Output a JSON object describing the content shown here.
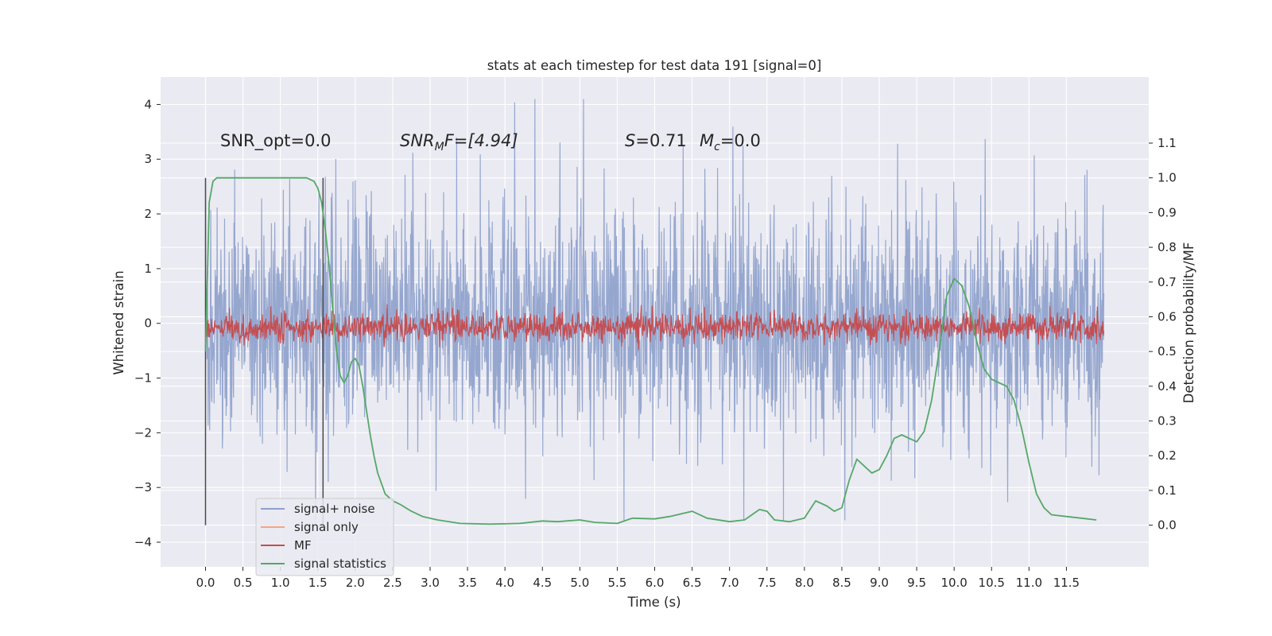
{
  "chart_data": {
    "type": "line",
    "title": "stats at each timestep for test data 191 [signal=0]",
    "xlabel": "Time (s)",
    "ylabel": "Whitened strain",
    "y2label": "Detection probability/MF",
    "xlim": [
      -0.6,
      12.6
    ],
    "ylim": [
      -4.45,
      4.5
    ],
    "y2lim": [
      -0.12,
      1.29
    ],
    "x_ticks": [
      "0.0",
      "0.5",
      "1.0",
      "1.5",
      "2.0",
      "2.5",
      "3.0",
      "3.5",
      "4.0",
      "4.5",
      "5.0",
      "5.5",
      "6.0",
      "6.5",
      "7.0",
      "7.5",
      "8.0",
      "8.5",
      "9.0",
      "9.5",
      "10.0",
      "10.5",
      "11.0",
      "11.5"
    ],
    "x_tick_values": [
      0,
      0.5,
      1,
      1.5,
      2,
      2.5,
      3,
      3.5,
      4,
      4.5,
      5,
      5.5,
      6,
      6.5,
      7,
      7.5,
      8,
      8.5,
      9,
      9.5,
      10,
      10.5,
      11,
      11.5
    ],
    "y_ticks": [
      "−4",
      "−3",
      "−2",
      "−1",
      "0",
      "1",
      "2",
      "3",
      "4"
    ],
    "y_tick_values": [
      -4,
      -3,
      -2,
      -1,
      0,
      1,
      2,
      3,
      4
    ],
    "y2_ticks": [
      "0.0",
      "0.1",
      "0.2",
      "0.3",
      "0.4",
      "0.5",
      "0.6",
      "0.7",
      "0.8",
      "0.9",
      "1.0",
      "1.1"
    ],
    "y2_tick_values": [
      0,
      0.1,
      0.2,
      0.3,
      0.4,
      0.5,
      0.6,
      0.7,
      0.8,
      0.9,
      1.0,
      1.1
    ],
    "grid": true,
    "legend_position": "bottom-left",
    "annotations": {
      "snr_opt": "SNR_opt=0.0",
      "snr_mf_var": "SNR",
      "snr_mf_sub": "M",
      "snr_mf_rest": "F=[4.94]",
      "s_var": "S",
      "s_rest": "=0.71",
      "mc_var": "M",
      "mc_sub": "c",
      "mc_rest": "=0.0"
    },
    "vlines_x": [
      0.0,
      1.57
    ],
    "vlines_y2_range": [
      0.0,
      1.0
    ],
    "series": [
      {
        "name": "signal+ noise",
        "color": "#8da0cb",
        "x_range": [
          0.0,
          12.0
        ],
        "y_envelope": [
          -3.6,
          4.1
        ],
        "note_values": "dense noise, 4096 Hz"
      },
      {
        "name": "signal only",
        "color": "#f4a582",
        "x_range": [
          0.0,
          12.0
        ],
        "values_constant": 0.0
      },
      {
        "name": "MF",
        "color": "#c44e52",
        "x_range": [
          0.0,
          12.0
        ],
        "y_range_y2": [
          0.51,
          0.63
        ]
      },
      {
        "name": "signal statistics",
        "color": "#55a868",
        "axis": "right",
        "x": [
          0.0,
          0.05,
          0.1,
          0.15,
          0.2,
          0.3,
          0.5,
          0.8,
          1.0,
          1.2,
          1.35,
          1.45,
          1.5,
          1.55,
          1.6,
          1.65,
          1.7,
          1.75,
          1.8,
          1.85,
          1.9,
          1.95,
          2.0,
          2.05,
          2.1,
          2.15,
          2.2,
          2.25,
          2.3,
          2.35,
          2.4,
          2.5,
          2.6,
          2.75,
          2.9,
          3.1,
          3.4,
          3.8,
          4.2,
          4.5,
          4.7,
          5.0,
          5.2,
          5.5,
          5.7,
          6.0,
          6.2,
          6.5,
          6.7,
          7.0,
          7.2,
          7.4,
          7.5,
          7.6,
          7.8,
          8.0,
          8.15,
          8.3,
          8.4,
          8.5,
          8.6,
          8.7,
          8.8,
          8.9,
          9.0,
          9.1,
          9.2,
          9.3,
          9.4,
          9.5,
          9.6,
          9.7,
          9.8,
          9.9,
          10.0,
          10.1,
          10.2,
          10.3,
          10.4,
          10.5,
          10.6,
          10.7,
          10.8,
          10.9,
          11.0,
          11.1,
          11.2,
          11.3,
          11.5,
          11.7,
          11.9
        ],
        "values": [
          0.5,
          0.93,
          0.99,
          1.0,
          1.0,
          1.0,
          1.0,
          1.0,
          1.0,
          1.0,
          1.0,
          0.99,
          0.97,
          0.93,
          0.85,
          0.75,
          0.62,
          0.5,
          0.43,
          0.41,
          0.43,
          0.47,
          0.48,
          0.46,
          0.4,
          0.33,
          0.26,
          0.2,
          0.15,
          0.12,
          0.09,
          0.07,
          0.06,
          0.04,
          0.025,
          0.015,
          0.005,
          0.003,
          0.005,
          0.012,
          0.01,
          0.015,
          0.008,
          0.005,
          0.02,
          0.018,
          0.025,
          0.04,
          0.02,
          0.01,
          0.015,
          0.045,
          0.04,
          0.015,
          0.01,
          0.02,
          0.07,
          0.055,
          0.04,
          0.05,
          0.13,
          0.19,
          0.17,
          0.15,
          0.16,
          0.2,
          0.25,
          0.26,
          0.25,
          0.24,
          0.27,
          0.36,
          0.5,
          0.66,
          0.71,
          0.69,
          0.63,
          0.53,
          0.45,
          0.42,
          0.41,
          0.4,
          0.36,
          0.28,
          0.18,
          0.09,
          0.05,
          0.03,
          0.025,
          0.02,
          0.015
        ]
      }
    ]
  }
}
